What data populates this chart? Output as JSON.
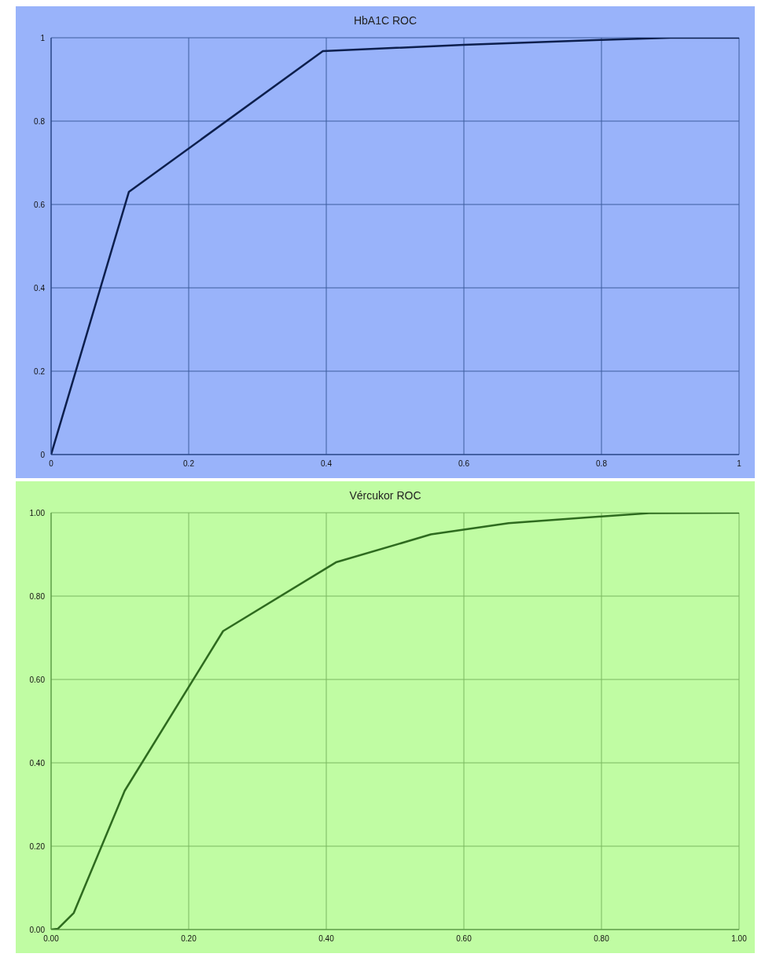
{
  "chart_data": [
    {
      "type": "line",
      "title": "HbA1C ROC",
      "x": [
        0,
        0.113,
        0.395,
        0.6,
        0.8,
        0.9,
        1
      ],
      "values": [
        0,
        0.63,
        0.968,
        0.983,
        0.995,
        1,
        1
      ],
      "color": "#0d1f4d",
      "xlim": [
        0,
        1
      ],
      "ylim": [
        0,
        1
      ],
      "xticks": [
        0,
        0.2,
        0.4,
        0.6,
        0.8,
        1
      ],
      "yticks": [
        0,
        0.2,
        0.4,
        0.6,
        0.8,
        1
      ],
      "grid": true
    },
    {
      "type": "line",
      "title": "Vércukor ROC",
      "x": [
        0,
        0.01,
        0.033,
        0.107,
        0.25,
        0.414,
        0.552,
        0.665,
        0.8,
        0.869,
        1
      ],
      "values": [
        0,
        0.002,
        0.04,
        0.333,
        0.716,
        0.881,
        0.948,
        0.975,
        0.991,
        0.999,
        1
      ],
      "color": "#2e6b1f",
      "xlim": [
        0,
        1
      ],
      "ylim": [
        0,
        1
      ],
      "xticks": [
        {
          "value": 0,
          "label": "0.00"
        },
        {
          "value": 0.2,
          "label": "0.20"
        },
        {
          "value": 0.4,
          "label": "0.40"
        },
        {
          "value": 0.6,
          "label": "0.60"
        },
        {
          "value": 0.8,
          "label": "0.80"
        },
        {
          "value": 1,
          "label": "1.00"
        }
      ],
      "yticks": [
        {
          "value": 0,
          "label": "0.00"
        },
        {
          "value": 0.2,
          "label": "0.20"
        },
        {
          "value": 0.4,
          "label": "0.40"
        },
        {
          "value": 0.6,
          "label": "0.60"
        },
        {
          "value": 0.8,
          "label": "0.80"
        },
        {
          "value": 1,
          "label": "1.00"
        }
      ],
      "grid": true
    }
  ]
}
